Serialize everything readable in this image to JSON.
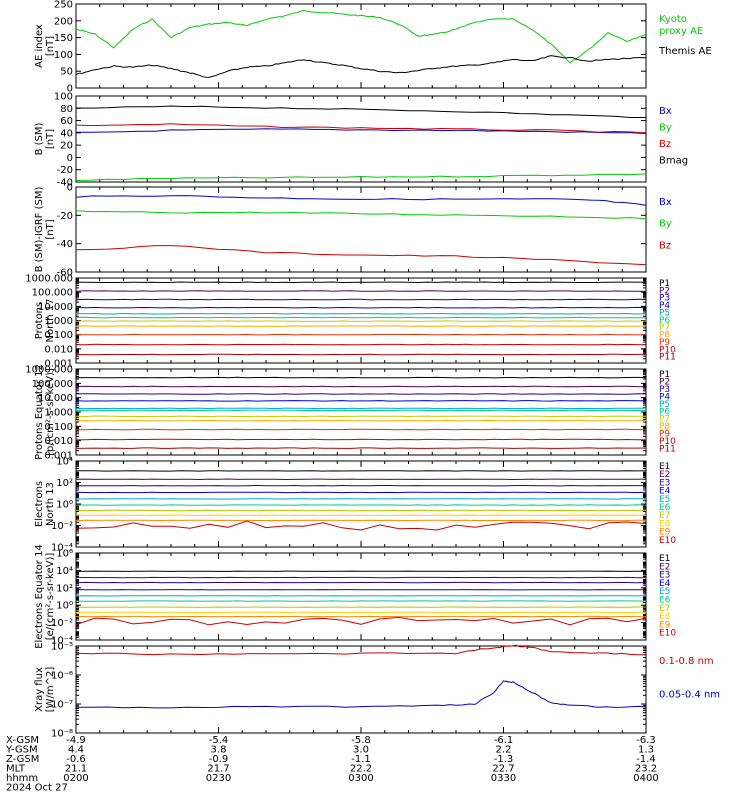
{
  "chart_data": {
    "type": "line",
    "date_label": "2024 Oct 27",
    "time_range": [
      "02:00",
      "04:00"
    ],
    "panels": [
      {
        "ylabel": [
          "AE index",
          "[nT]"
        ],
        "scale": "linear",
        "ylim": [
          0,
          250
        ],
        "yticks": [
          "0",
          "50",
          "100",
          "150",
          "200",
          "250"
        ],
        "series": [
          {
            "name": "Kyoto proxy AE",
            "label_lines": [
              "Kyoto",
              "proxy AE"
            ],
            "color": "#00cc00",
            "t": [
              0,
              4,
              8,
              12,
              16,
              20,
              24,
              28,
              32,
              36,
              40,
              44,
              48,
              52,
              56,
              60,
              64,
              68,
              72,
              76,
              80,
              84,
              88,
              92,
              96,
              100,
              104,
              108,
              112,
              116,
              120
            ],
            "values": [
              175,
              160,
              120,
              175,
              205,
              150,
              180,
              190,
              195,
              185,
              205,
              215,
              230,
              225,
              220,
              215,
              210,
              190,
              155,
              160,
              175,
              195,
              205,
              205,
              175,
              130,
              75,
              115,
              165,
              140,
              160
            ]
          },
          {
            "name": "Themis AE",
            "label_lines": [
              "Themis AE"
            ],
            "color": "#000000",
            "t": [
              0,
              4,
              8,
              12,
              16,
              20,
              24,
              28,
              32,
              36,
              40,
              44,
              48,
              52,
              56,
              60,
              64,
              68,
              72,
              76,
              80,
              84,
              88,
              92,
              96,
              100,
              104,
              108,
              112,
              116,
              120
            ],
            "values": [
              40,
              55,
              65,
              62,
              68,
              58,
              45,
              30,
              50,
              62,
              65,
              75,
              85,
              75,
              68,
              58,
              50,
              45,
              52,
              60,
              65,
              68,
              75,
              85,
              80,
              95,
              90,
              80,
              85,
              88,
              90
            ]
          }
        ]
      },
      {
        "ylabel": [
          "B (SM)",
          "[nT]"
        ],
        "scale": "linear",
        "ylim": [
          -40,
          100
        ],
        "yticks": [
          "-40",
          "-20",
          "0",
          "20",
          "40",
          "60",
          "80",
          "100"
        ],
        "series": [
          {
            "name": "Bx",
            "color": "#0000cc",
            "t": [
              0,
              20,
              40,
              60,
              80,
              100,
              120
            ],
            "values": [
              40,
              44,
              46,
              45,
              44,
              42,
              39
            ]
          },
          {
            "name": "By",
            "color": "#00cc00",
            "t": [
              0,
              20,
              40,
              60,
              80,
              100,
              120
            ],
            "values": [
              -37,
              -34,
              -33,
              -32,
              -31,
              -29,
              -27
            ]
          },
          {
            "name": "Bz",
            "color": "#cc0000",
            "t": [
              0,
              20,
              40,
              60,
              80,
              100,
              120
            ],
            "values": [
              52,
              54,
              50,
              48,
              46,
              44,
              40
            ]
          },
          {
            "name": "Bmag",
            "color": "#000000",
            "t": [
              0,
              20,
              40,
              60,
              80,
              100,
              120
            ],
            "values": [
              80,
              83,
              81,
              78,
              75,
              70,
              65
            ]
          }
        ]
      },
      {
        "ylabel": [
          "B (SM)-IGRF (SM)",
          "[nT]"
        ],
        "scale": "linear",
        "ylim": [
          -60,
          10
        ],
        "yticks": [
          "-60",
          "-40",
          "-20",
          "0"
        ],
        "series": [
          {
            "name": "Bx",
            "color": "#0000cc",
            "t": [
              0,
              20,
              40,
              60,
              80,
              100,
              110,
              120
            ],
            "values": [
              2,
              3,
              1,
              0,
              0,
              0,
              -1,
              -5
            ]
          },
          {
            "name": "By",
            "color": "#00cc00",
            "t": [
              0,
              20,
              40,
              60,
              80,
              100,
              120
            ],
            "values": [
              -10,
              -11,
              -11,
              -12,
              -13,
              -14,
              -16
            ]
          },
          {
            "name": "Bz",
            "color": "#cc0000",
            "t": [
              0,
              20,
              40,
              60,
              80,
              100,
              120
            ],
            "values": [
              -42,
              -38,
              -44,
              -46,
              -47,
              -50,
              -54
            ]
          }
        ]
      },
      {
        "ylabel": [
          "Protons",
          "North 17"
        ],
        "scale": "log",
        "ylim_log10": [
          -3,
          3
        ],
        "yticks": [
          "0.001",
          "0.010",
          "0.100",
          "1.000",
          "10.000",
          "100.000",
          "1000.000"
        ],
        "channels": [
          {
            "name": "P1",
            "color": "#000000",
            "level": 500
          },
          {
            "name": "P2",
            "color": "#550055",
            "level": 120
          },
          {
            "name": "P3",
            "color": "#2a0088",
            "level": 30
          },
          {
            "name": "P4",
            "color": "#0000dd",
            "level": 8
          },
          {
            "name": "P5",
            "color": "#00aacc",
            "level": 3
          },
          {
            "name": "P6",
            "color": "#00cc88",
            "level": 1.6
          },
          {
            "name": "P7",
            "color": "#cccc00",
            "level": 0.9
          },
          {
            "name": "P8",
            "color": "#ffaa00",
            "level": 0.4
          },
          {
            "name": "P9",
            "color": "#dd3300",
            "level": 0.1
          },
          {
            "name": "P10",
            "color": "#cc0000",
            "level": 0.02
          },
          {
            "name": "P11",
            "color": "#aa0000",
            "level": 0.004
          }
        ]
      },
      {
        "ylabel": [
          "Protons Equator 12",
          "[p/(cm²-s-sr-keV)]"
        ],
        "scale": "log",
        "ylim_log10": [
          -3,
          3
        ],
        "yticks": [
          "0.001",
          "0.010",
          "0.100",
          "1.000",
          "10.000",
          "100.000",
          "1000.000"
        ],
        "channels": [
          {
            "name": "P1",
            "color": "#000000",
            "level": 250
          },
          {
            "name": "P2",
            "color": "#550055",
            "level": 60
          },
          {
            "name": "P3",
            "color": "#2a0088",
            "level": 18
          },
          {
            "name": "P4",
            "color": "#0000dd",
            "level": 6
          },
          {
            "name": "P5",
            "color": "#00aacc",
            "level": 1.8
          },
          {
            "name": "P6",
            "color": "#00cc88",
            "level": 1.3
          },
          {
            "name": "P7",
            "color": "#cccc00",
            "level": 0.5
          },
          {
            "name": "P8",
            "color": "#ffaa00",
            "level": 0.25
          },
          {
            "name": "P9",
            "color": "#dd3300",
            "level": 0.06
          },
          {
            "name": "P10",
            "color": "#cc0000",
            "level": 0.012
          },
          {
            "name": "P11",
            "color": "#aa0000",
            "level": 0.003
          }
        ]
      },
      {
        "ylabel": [
          "Electrons",
          "North 13"
        ],
        "scale": "log",
        "ylim_log10": [
          -4,
          4
        ],
        "yticks": [
          "10⁻⁴",
          "10⁻²",
          "10⁰",
          "10²",
          "10⁴"
        ],
        "channels": [
          {
            "name": "E1",
            "color": "#000000",
            "level": 1200
          },
          {
            "name": "E2",
            "color": "#550055",
            "level": 200
          },
          {
            "name": "E3",
            "color": "#2a0088",
            "level": 50
          },
          {
            "name": "E4",
            "color": "#0000dd",
            "level": 12
          },
          {
            "name": "E5",
            "color": "#00aacc",
            "level": 3
          },
          {
            "name": "E6",
            "color": "#00cc88",
            "level": 0.8
          },
          {
            "name": "E7",
            "color": "#aacc00",
            "level": 0.25
          },
          {
            "name": "E8",
            "color": "#ffcc00",
            "level": 0.09
          },
          {
            "name": "E9",
            "color": "#ff8800",
            "level": 0.03
          },
          {
            "name": "E10",
            "color": "#cc0000",
            "level": 0.01,
            "noisy": true
          }
        ]
      },
      {
        "ylabel": [
          "Electrons Equator 14",
          "[e/(cm²-s-sr-keV)]"
        ],
        "scale": "log",
        "ylim_log10": [
          -4,
          6
        ],
        "yticks": [
          "10⁻⁴",
          "10⁻²",
          "10⁰",
          "10²",
          "10⁴",
          "10⁶"
        ],
        "channels": [
          {
            "name": "E1",
            "color": "#000000",
            "level": 8000
          },
          {
            "name": "E2",
            "color": "#550055",
            "level": 1500
          },
          {
            "name": "E3",
            "color": "#2a0088",
            "level": 400
          },
          {
            "name": "E4",
            "color": "#0000dd",
            "level": 60
          },
          {
            "name": "E5",
            "color": "#00aacc",
            "level": 12
          },
          {
            "name": "E6",
            "color": "#00cc88",
            "level": 3
          },
          {
            "name": "E7",
            "color": "#aacc00",
            "level": 0.6
          },
          {
            "name": "E8",
            "color": "#ffcc00",
            "level": 0.15
          },
          {
            "name": "E9",
            "color": "#ff8800",
            "level": 0.05
          },
          {
            "name": "E10",
            "color": "#cc0000",
            "level": 0.015,
            "noisy": true
          }
        ]
      },
      {
        "ylabel": [
          "Xray flux",
          "[W/m^2]"
        ],
        "scale": "log",
        "ylim_log10": [
          -8,
          -5
        ],
        "yticks": [
          "10⁻⁸",
          "10⁻⁷",
          "10⁻⁶",
          "10⁻⁵"
        ],
        "series": [
          {
            "name": "0.1-0.8 nm",
            "color": "#cc0000",
            "t": [
              0,
              20,
              40,
              60,
              80,
              88,
              92,
              96,
              100,
              110,
              120
            ],
            "log10_values": [
              -5.25,
              -5.28,
              -5.27,
              -5.26,
              -5.25,
              -5.05,
              -4.98,
              -5.05,
              -5.2,
              -5.25,
              -5.3
            ]
          },
          {
            "name": "0.05-0.4 nm",
            "color": "#0000cc",
            "t": [
              0,
              20,
              40,
              60,
              76,
              84,
              88,
              90,
              92,
              96,
              100,
              104,
              110,
              120
            ],
            "log10_values": [
              -7.1,
              -7.12,
              -7.08,
              -7.1,
              -7.05,
              -7.0,
              -6.6,
              -6.2,
              -6.25,
              -6.6,
              -6.95,
              -7.05,
              -7.1,
              -7.1
            ]
          }
        ]
      }
    ],
    "x_axis": {
      "rows": [
        {
          "label": "X-GSM",
          "values": [
            "-4.9",
            "-5.4",
            "-5.8",
            "-6.1",
            "-6.3"
          ]
        },
        {
          "label": "Y-GSM",
          "values": [
            "4.4",
            "3.8",
            "3.0",
            "2.2",
            "1.3"
          ]
        },
        {
          "label": "Z-GSM",
          "values": [
            "-0.6",
            "-0.9",
            "-1.1",
            "-1.3",
            "-1.4"
          ]
        },
        {
          "label": "MLT",
          "values": [
            "21.1",
            "21.7",
            "22.2",
            "22.7",
            "23.2"
          ]
        },
        {
          "label": "hhmm",
          "values": [
            "0200",
            "0230",
            "0300",
            "0330",
            "0400"
          ]
        }
      ]
    }
  }
}
